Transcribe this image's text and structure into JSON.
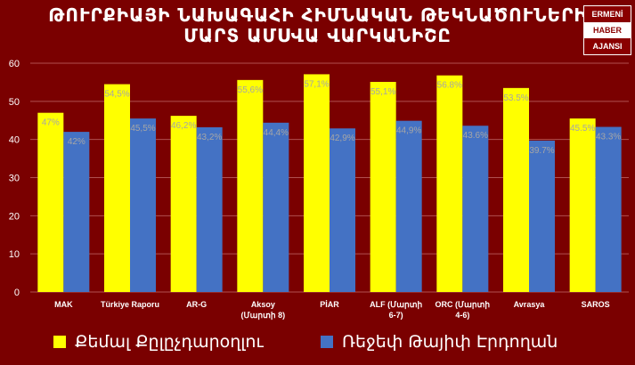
{
  "header": {
    "title_line1": "ԹՈՒՐՔԻԱՅԻ ՆԱԽԱԳԱՀԻ ՀԻՄՆԱԿԱՆ ԹԵԿՆԱԾՈՒՆԵՐԻ",
    "title_line2": "ՄԱՐՏ ԱՄՍՎԱ ՎԱՐԿԱՆԻՇԸ"
  },
  "logo": {
    "line1": "ERMENİ",
    "line2": "HABER",
    "line3": "AJANSI"
  },
  "colors": {
    "background": "#7a0000",
    "series1": "#ffff00",
    "series2": "#4472c4",
    "label": "#a6a6a6",
    "gridline": "#b05050"
  },
  "chart_data": {
    "type": "bar",
    "categories": [
      "MAK",
      "Türkiye Raporu",
      "AR-G",
      "Aksoy\n(Մարտի 8)",
      "PİAR",
      "ALF (Մարտի\n6-7)",
      "ORC (Մարտի\n4-6)",
      "Avrasya",
      "SAROS"
    ],
    "series": [
      {
        "name": "Քեմալ Քըլըչդարօղլու",
        "values": [
          47,
          54.5,
          46.2,
          55.6,
          57.1,
          55.1,
          56.8,
          53.5,
          45.5
        ],
        "labels": [
          "47%",
          "54,5%",
          "46,2%",
          "55,6%",
          "57,1%",
          "55,1%",
          "56.8%",
          "53.5%",
          "45.5%"
        ]
      },
      {
        "name": "Ռեջեփ Թայիփ Էրդողան",
        "values": [
          42,
          45.5,
          43.2,
          44.4,
          42.9,
          44.9,
          43.6,
          39.7,
          43.3
        ],
        "labels": [
          "42%",
          "45,5%",
          "43,2%",
          "44,4%",
          "42,9%",
          "44,9%",
          "43.6%",
          "39.7%",
          "43.3%"
        ]
      }
    ],
    "y_ticks": [
      "0",
      "10",
      "20",
      "30",
      "40",
      "50",
      "60"
    ],
    "ylim": [
      0,
      60
    ],
    "grid": true,
    "legend_position": "bottom"
  }
}
